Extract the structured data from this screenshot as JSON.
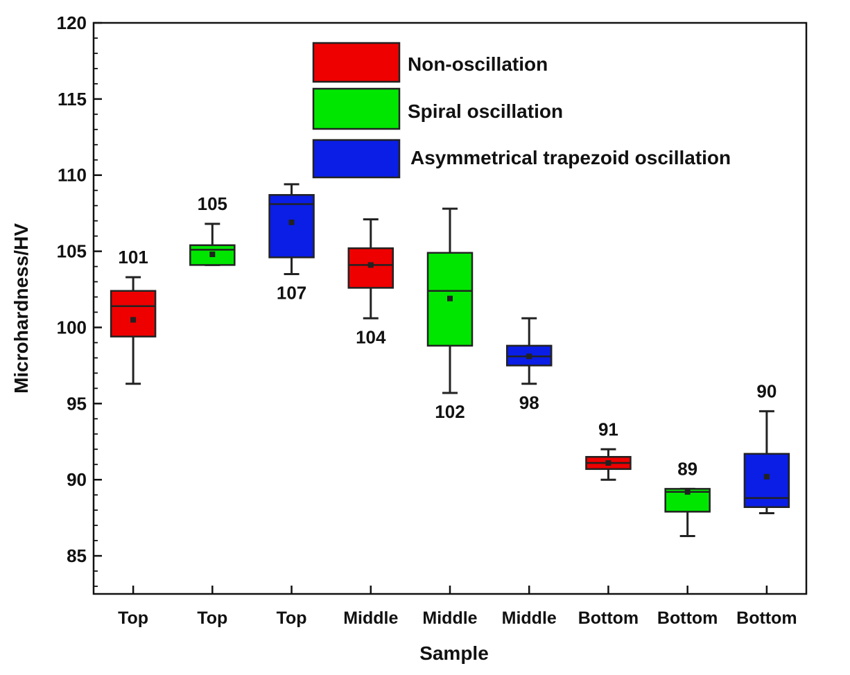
{
  "chart_data": {
    "type": "box",
    "title": "",
    "xlabel": "Sample",
    "ylabel": "Microhardness/HV",
    "ylim": [
      82.5,
      120
    ],
    "yticks": [
      85,
      90,
      95,
      100,
      105,
      110,
      115,
      120
    ],
    "grid": false,
    "legend_position": "top-center",
    "series": [
      {
        "name": "Non-oscillation",
        "color": "#ee0000"
      },
      {
        "name": "Spiral oscillation",
        "color": "#00e600"
      },
      {
        "name": "Asymmetrical trapezoid oscillation",
        "color": "#0a1ee6"
      }
    ],
    "boxes": [
      {
        "category": "Top",
        "series": 0,
        "whisker_low": 96.3,
        "q1": 99.4,
        "median": 101.4,
        "q3": 102.4,
        "whisker_high": 103.3,
        "mean": 100.5,
        "label": "101",
        "label_position": "above"
      },
      {
        "category": "Top",
        "series": 1,
        "whisker_low": 104.1,
        "q1": 104.1,
        "median": 105.1,
        "q3": 105.4,
        "whisker_high": 106.8,
        "mean": 104.8,
        "label": "105",
        "label_position": "above"
      },
      {
        "category": "Top",
        "series": 2,
        "whisker_low": 103.5,
        "q1": 104.6,
        "median": 108.1,
        "q3": 108.7,
        "whisker_high": 109.4,
        "mean": 106.9,
        "label": "107",
        "label_position": "below"
      },
      {
        "category": "Middle",
        "series": 0,
        "whisker_low": 100.6,
        "q1": 102.6,
        "median": 104.1,
        "q3": 105.2,
        "whisker_high": 107.1,
        "mean": 104.1,
        "label": "104",
        "label_position": "below"
      },
      {
        "category": "Middle",
        "series": 1,
        "whisker_low": 95.7,
        "q1": 98.8,
        "median": 102.4,
        "q3": 104.9,
        "whisker_high": 107.8,
        "mean": 101.9,
        "label": "102",
        "label_position": "below"
      },
      {
        "category": "Middle",
        "series": 2,
        "whisker_low": 96.3,
        "q1": 97.5,
        "median": 98.1,
        "q3": 98.8,
        "whisker_high": 100.6,
        "mean": 98.1,
        "label": "98",
        "label_position": "below"
      },
      {
        "category": "Bottom",
        "series": 0,
        "whisker_low": 90.0,
        "q1": 90.7,
        "median": 91.1,
        "q3": 91.5,
        "whisker_high": 92.0,
        "mean": 91.1,
        "label": "91",
        "label_position": "above"
      },
      {
        "category": "Bottom",
        "series": 1,
        "whisker_low": 86.3,
        "q1": 87.9,
        "median": 89.2,
        "q3": 89.4,
        "whisker_high": 89.4,
        "mean": 89.2,
        "label": "89",
        "label_position": "above"
      },
      {
        "category": "Bottom",
        "series": 2,
        "whisker_low": 87.8,
        "q1": 88.2,
        "median": 88.8,
        "q3": 91.7,
        "whisker_high": 94.5,
        "mean": 90.2,
        "label": "90",
        "label_position": "above"
      }
    ]
  }
}
